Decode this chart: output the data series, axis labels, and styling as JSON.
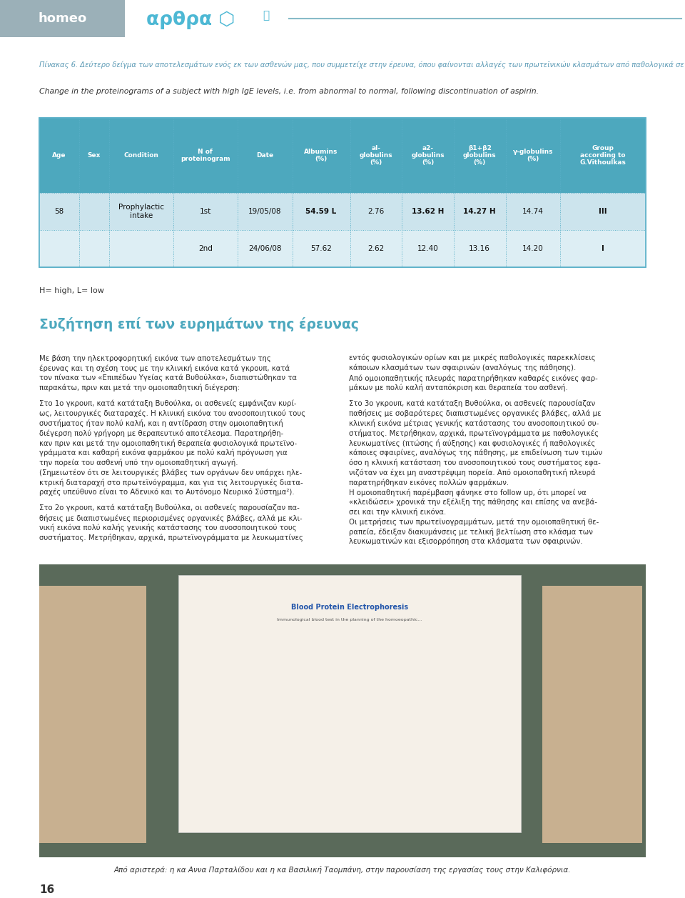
{
  "header_homeo_text": "homeo",
  "header_arthra_text": "αρθρα",
  "header_bg": "#9bb0b8",
  "header_arthra_color": "#4db8d4",
  "page_bg": "#ffffff",
  "caption_italic_color": "#5b9ab5",
  "caption_greek_bold": "Πίνακας 6.",
  "caption_greek_rest": " Δεύτερο δείγμα των αποτελεσμάτων ενός εκ των ασθενών μας, που συμμετείχε στην έρευνα, όπου φαίνονται αλλαγές των πρωτεϊνικών κλασμάτων από παθολογικά σε φυσιολογικά, μετά τη διακοπή της χρήσης ασπιρίνης.",
  "caption_english": "Change in the proteinograms of a subject with high IgE levels, i.e. from abnormal to normal, following discontinuation of aspirin.",
  "table_header_bg": "#4da8be",
  "table_header_text_color": "#ffffff",
  "table_row1_bg": "#cce4ed",
  "table_row2_bg": "#ddeef4",
  "table_border_color": "#5ab0c8",
  "table_headers": [
    "Age",
    "Sex",
    "Condition",
    "N of\nproteinogram",
    "Date",
    "Albumins\n(%)",
    "al-\nglobulins\n(%)",
    "a2-\nglobulins\n(%)",
    "β1+β2\nglobulins\n(%)",
    "γ-globulins\n(%)",
    "Group\naccording to\nG.Vithoulkas"
  ],
  "row1": [
    "58",
    "",
    "Prophylactic\nintake",
    "1st",
    "19/05/08",
    "54.59 L",
    "2.76",
    "13.62 H",
    "14.27 H",
    "14.74",
    "III"
  ],
  "row2": [
    "",
    "",
    "",
    "2nd",
    "24/06/08",
    "57.62",
    "2.62",
    "12.40",
    "13.16",
    "14.20",
    "I"
  ],
  "footnote": "H= high, L= low",
  "section_title": "Συζήτηση επί των ευρημάτων της έρευνας",
  "section_title_color": "#4da8be",
  "body_text_color": "#2a2a2a",
  "photo_caption": "Από αριστερά: η κα Αννα Παρταλίδου και η κα Βασιλική Ταομπάνη, στην παρουσίαση της εργασίας τους στην Καλιφόρνια.",
  "page_number": "16",
  "left_col_paras": [
    "Με βάση την ηλεκτροφορητική εικόνα των αποτελεσμάτων της\nέρευνας και τη σχέση τους με την κλινική εικόνα κατά γκρουπ, κατά\nτον πίνακα των «Επιπέδων Υγείας κατά Βυθούλκα», διαπιστώθηκαν τα\nπαρακάτω, πριν και μετά την ομοιοπαθητική διέγερση:",
    "Στο 1ο γκρουπ, κατά κατάταξη Βυθούλκα, οι ασθενείς εμφάνιζαν κυρί-\nως, λειτουργικές διαταραχές. Η κλινική εικόνα του ανοσοποιητικού τους\nσυστήματος ήταν πολύ καλή, και η αντίδραση στην ομοιοπαθητική\nδιέγερση πολύ γρήγορη με θεραπευτικό αποτέλεσμα. Παρατηρήθη-\nκαν πριν και μετά την ομοιοπαθητική θεραπεία φυσιολογικά πρωτεϊνο-\nγράμματα και καθαρή εικόνα φαρμάκου με πολύ καλή πρόγνωση για\nτην πορεία του ασθενή υπό την ομοιοπαθητική αγωγή.\n(Σημειωτέον ότι σε λειτουργικές βλάβες των οργάνων δεν υπάρχει ηλε-\nκτρική διαταραχή στο πρωτεϊνόγραμμα, και για τις λειτουργικές διατα-\nραχές υπεύθυνο είναι το Αδενικό και το Αυτόνομο Νευρικό Σύστημα²).",
    "Στο 2ο γκρουπ, κατά κατάταξη Βυθούλκα, οι ασθενείς παρουσίαζαν πα-\nθήσεις με διαπιστωμένες περιορισμένες οργανικές βλάβες, αλλά με κλι-\nνική εικόνα πολύ καλής γενικής κατάστασης του ανοσοποιητικού τους\nσυστήματος. Μετρήθηκαν, αρχικά, πρωτεϊνογράμματα με λευκωματίνες"
  ],
  "right_col_paras": [
    "εντός φυσιολογικών ορίων και με μικρές παθολογικές παρεκκλίσεις\nκάποιων κλασμάτων των σφαιρινών (αναλόγως της πάθησης).\nΑπό ομοιοπαθητικής πλευράς παρατηρήθηκαν καθαρές εικόνες φαρ-\nμάκων με πολύ καλή ανταπόκριση και θεραπεία του ασθενή.",
    "Στο 3ο γκρουπ, κατά κατάταξη Βυθούλκα, οι ασθενείς παρουσίαζαν\nπαθήσεις με σοβαρότερες διαπιστωμένες οργανικές βλάβες, αλλά με\nκλινική εικόνα μέτριας γενικής κατάστασης του ανοσοποιητικού συ-\nστήματος. Μετρήθηκαν, αρχικά, πρωτεϊνογράμματα με παθολογικές\nλευκωματίνες (πτώσης ή αύξησης) και φυσιολογικές ή παθολογικές\nκάποιες σφαιρίνες, αναλόγως της πάθησης, με επιδείνωση των τιμών\nόσο η κλινική κατάσταση του ανοσοποιητικού τους συστήματος εφα-\nνιζόταν να έχει μη αναστρέψιμη πορεία. Από ομοιοπαθητική πλευρά\nπαρατηρήθηκαν εικόνες πολλών φαρμάκων.\nΗ ομοιοπαθητική παρέμβαση φάνηκε στο follow up, ότι μπορεί να\n«κλειδώσει» χρονικά την εξέλιξη της πάθησης και επίσης να ανεβά-\nσει και την κλινική εικόνα.\nΟι μετρήσεις των πρωτεϊνογραμμάτων, μετά την ομοιοπαθητική θε-\nραπεία, έδειξαν διακυμάνσεις με τελική βελτίωση στο κλάσμα των\nλευκωματινών και εξισορρόπηση στα κλάσματα των σφαιρινών."
  ]
}
